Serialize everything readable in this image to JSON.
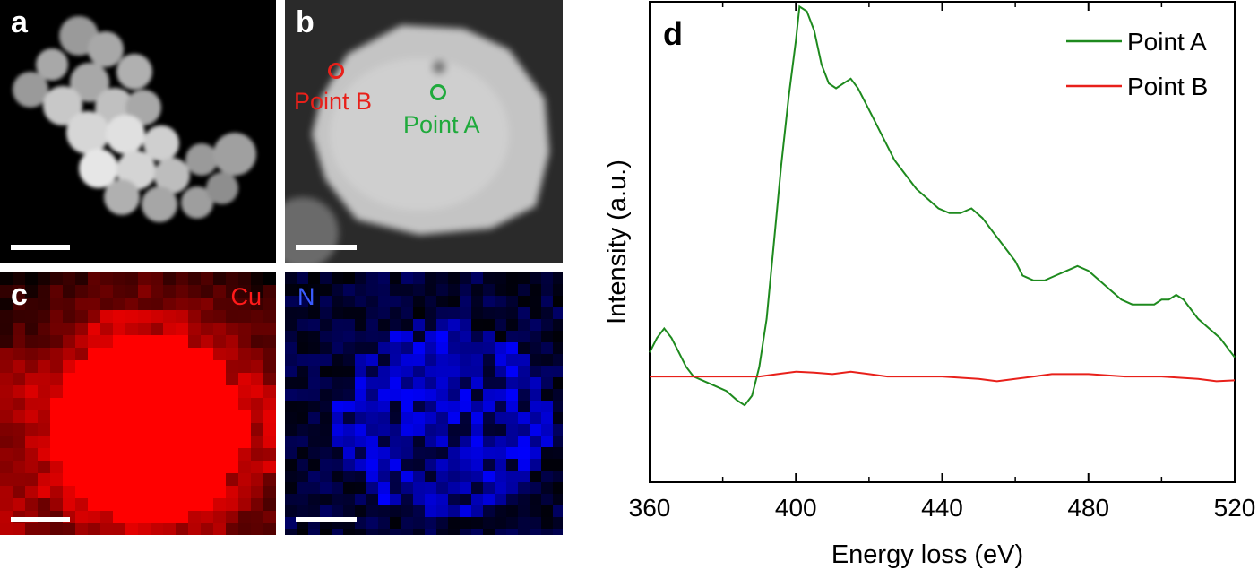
{
  "panels": {
    "a": {
      "label": "a"
    },
    "b": {
      "label": "b",
      "point_b_label": "Point B",
      "point_a_label": "Point A",
      "point_b_color": "#e8201a",
      "point_a_color": "#1faa3c"
    },
    "c": {
      "label": "c",
      "element": "Cu",
      "color": "#ff1a1a"
    },
    "n": {
      "element": "N",
      "color": "#3a5bff"
    }
  },
  "chart_data": {
    "type": "line",
    "panel_label": "d",
    "xlabel": "Energy loss (eV)",
    "ylabel": "Intensity (a.u.)",
    "xlim": [
      360,
      520
    ],
    "ylim": [
      0,
      1
    ],
    "xticks": [
      360,
      400,
      440,
      480,
      520
    ],
    "minor_step": 20,
    "legend_position": "top-right",
    "series": [
      {
        "name": "Point A",
        "color": "#1e8a1e",
        "x": [
          360,
          362,
          364,
          366,
          368,
          370,
          372,
          375,
          378,
          381,
          384,
          386,
          388,
          390,
          392,
          394,
          396,
          398,
          400,
          401,
          403,
          405,
          407,
          409,
          411,
          413,
          415,
          417,
          419,
          421,
          423,
          425,
          427,
          430,
          433,
          436,
          439,
          442,
          445,
          448,
          451,
          454,
          457,
          460,
          462,
          465,
          468,
          471,
          474,
          477,
          480,
          483,
          486,
          489,
          492,
          495,
          498,
          500,
          502,
          504,
          506,
          508,
          510,
          513,
          516,
          519,
          520
        ],
        "y": [
          0.27,
          0.3,
          0.32,
          0.3,
          0.27,
          0.24,
          0.22,
          0.21,
          0.2,
          0.19,
          0.17,
          0.16,
          0.18,
          0.24,
          0.34,
          0.5,
          0.66,
          0.8,
          0.92,
          0.99,
          0.98,
          0.94,
          0.87,
          0.83,
          0.82,
          0.83,
          0.84,
          0.82,
          0.79,
          0.76,
          0.73,
          0.7,
          0.67,
          0.64,
          0.61,
          0.59,
          0.57,
          0.56,
          0.56,
          0.57,
          0.55,
          0.52,
          0.49,
          0.46,
          0.43,
          0.42,
          0.42,
          0.43,
          0.44,
          0.45,
          0.44,
          0.42,
          0.4,
          0.38,
          0.37,
          0.37,
          0.37,
          0.38,
          0.38,
          0.39,
          0.38,
          0.36,
          0.34,
          0.32,
          0.3,
          0.27,
          0.26
        ]
      },
      {
        "name": "Point B",
        "color": "#e8201a",
        "x": [
          360,
          370,
          380,
          390,
          395,
          400,
          405,
          410,
          415,
          420,
          425,
          430,
          440,
          450,
          455,
          460,
          465,
          470,
          475,
          480,
          490,
          500,
          510,
          515,
          520
        ],
        "y": [
          0.22,
          0.22,
          0.22,
          0.22,
          0.225,
          0.23,
          0.228,
          0.225,
          0.23,
          0.225,
          0.22,
          0.22,
          0.22,
          0.215,
          0.21,
          0.215,
          0.22,
          0.225,
          0.225,
          0.225,
          0.22,
          0.22,
          0.215,
          0.21,
          0.212
        ]
      }
    ]
  }
}
